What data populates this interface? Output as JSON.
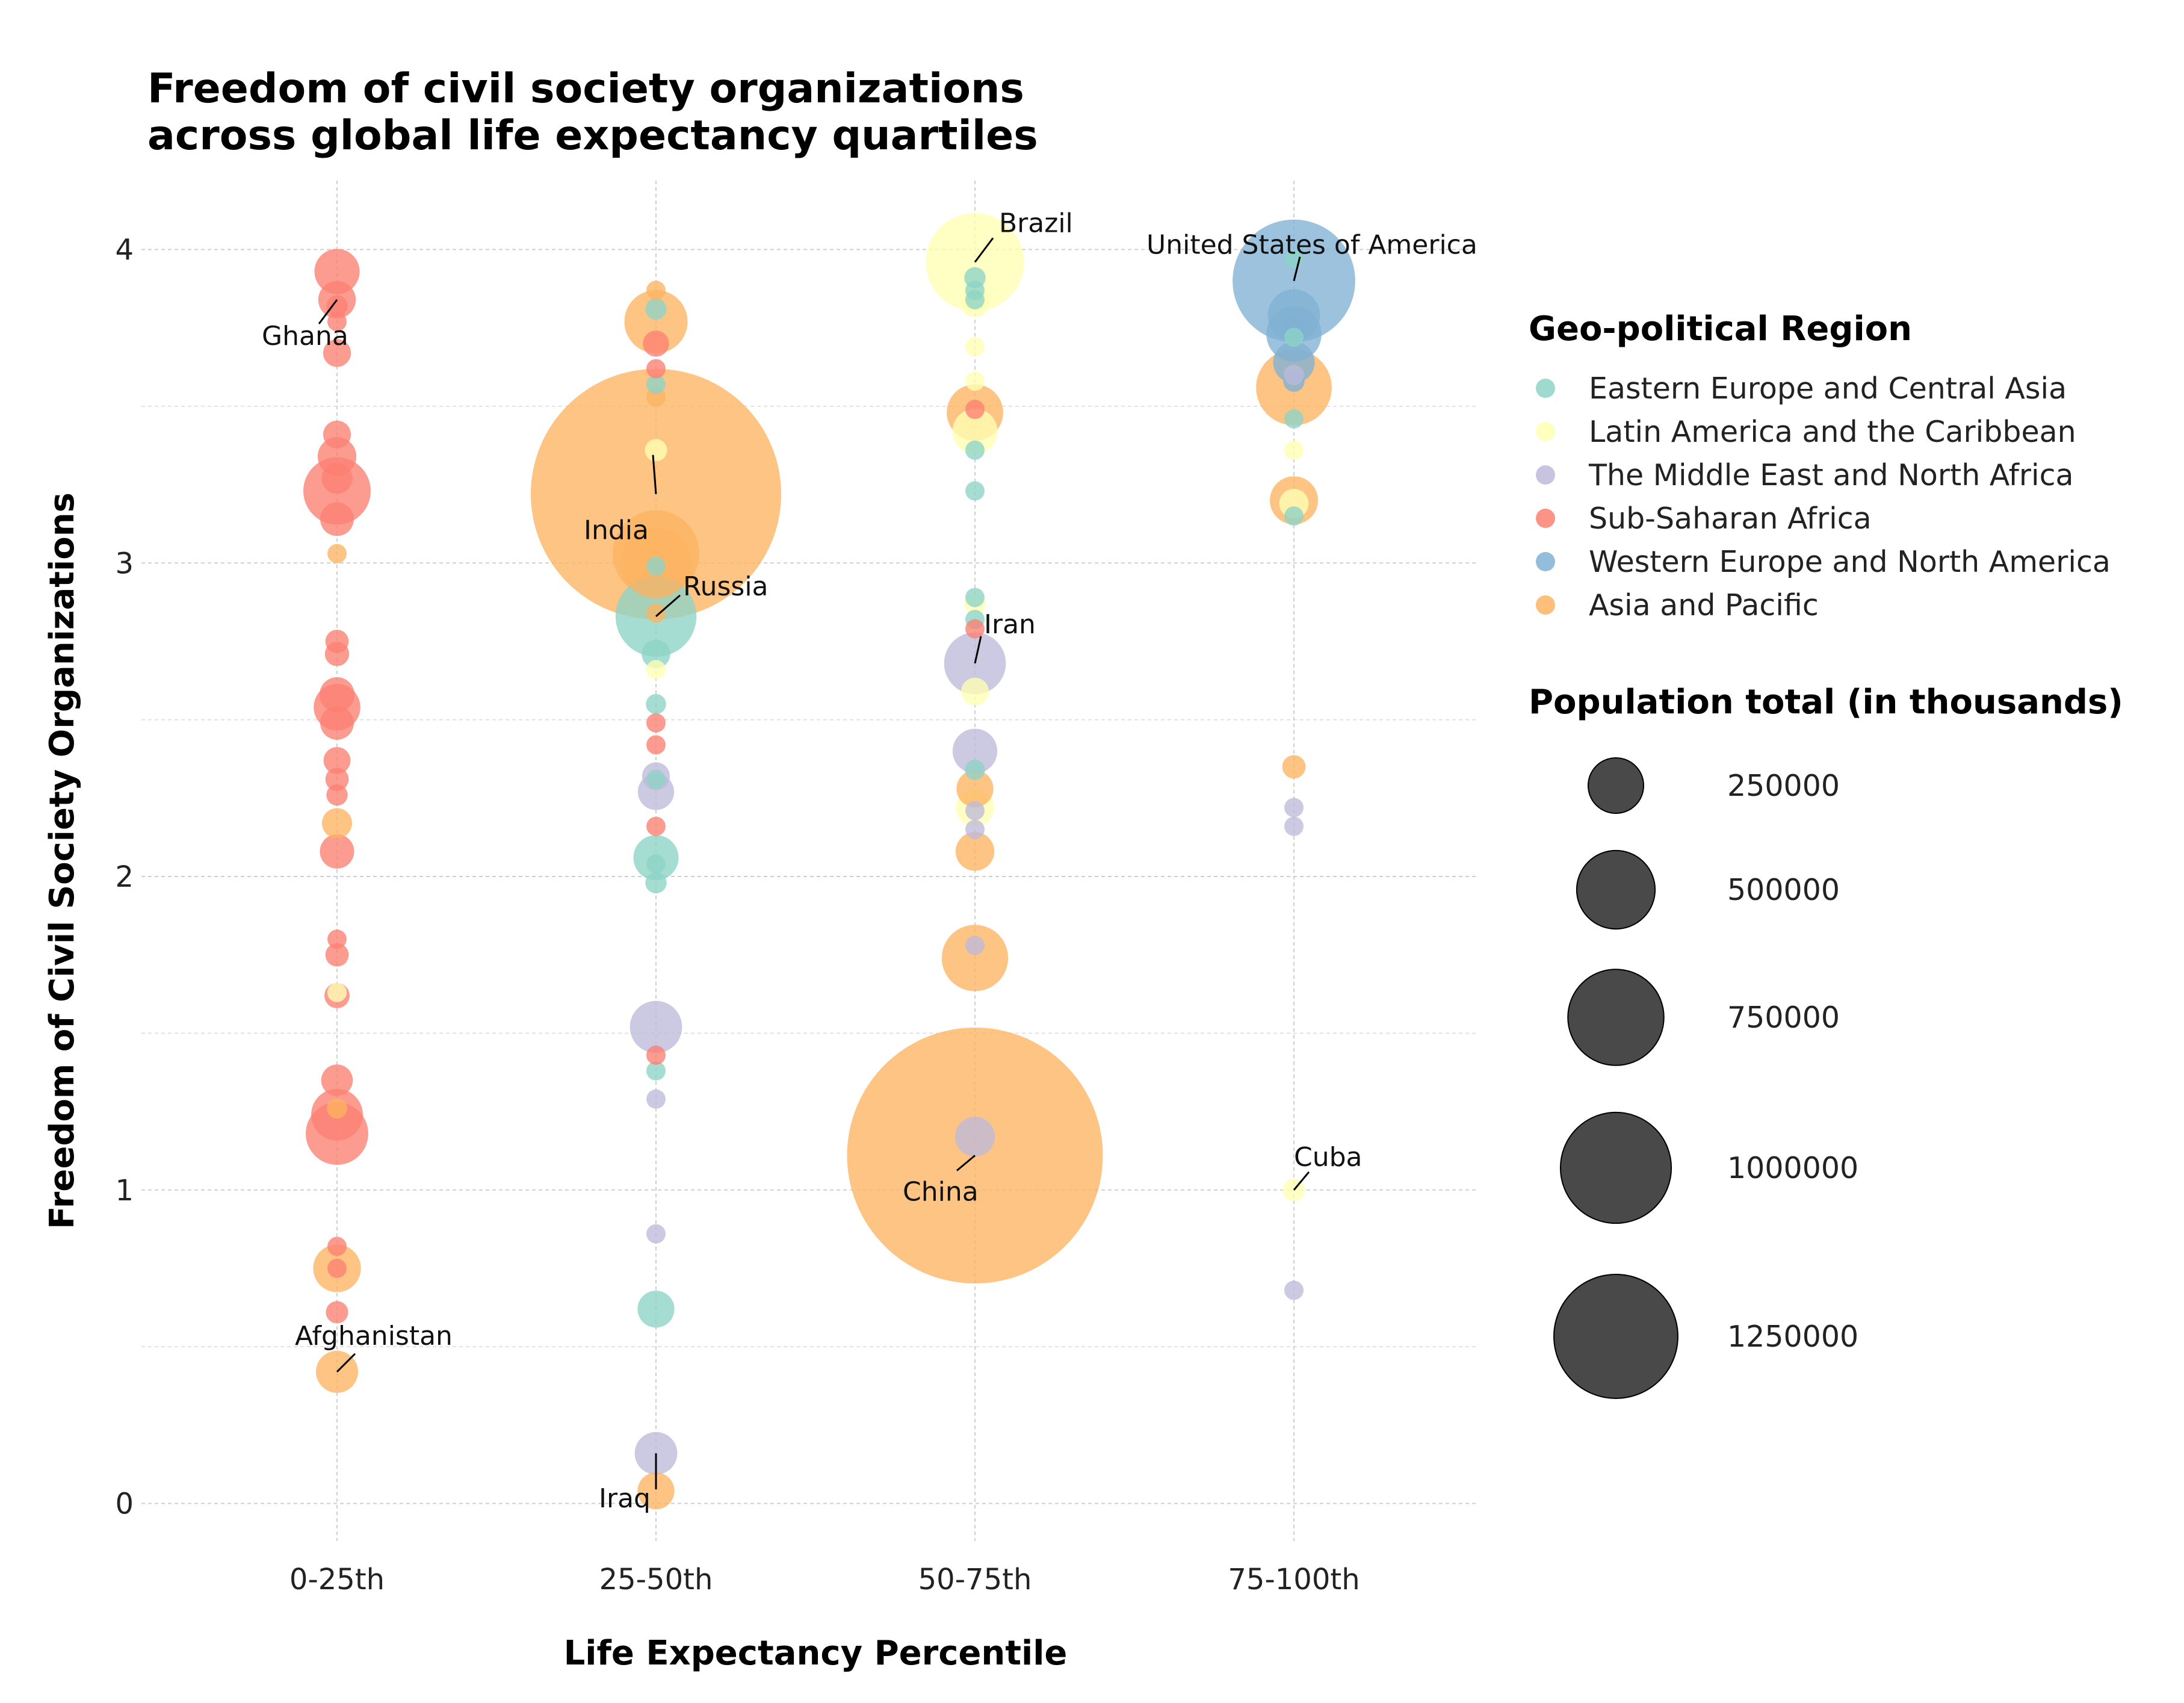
{
  "chart_data": {
    "type": "scatter",
    "title": "Freedom of civil society organizations\nacross global life expectancy quartiles",
    "xlabel": "Life Expectancy Percentile",
    "ylabel": "Freedom of Civil Society Organizations",
    "categories": [
      "0-25th",
      "25-50th",
      "50-75th",
      "75-100th"
    ],
    "y_ticks": [
      "0",
      "1",
      "2",
      "3",
      "4"
    ],
    "ylim": [
      -0.12,
      4.22
    ],
    "grid": "on",
    "legend_position": "right",
    "size_legend": {
      "title": "Population total (in thousands)",
      "values": [
        250000,
        500000,
        750000,
        1000000,
        1250000
      ],
      "labels": [
        "250000",
        "500000",
        "750000",
        "1000000",
        "1250000"
      ]
    },
    "series": [
      {
        "name": "Eastern Europe and Central Asia",
        "color": "#8dd3c7",
        "points": [
          {
            "x": "25-50th",
            "y": 3.81,
            "pop": 10000
          },
          {
            "x": "25-50th",
            "y": 3.57,
            "pop": 4000
          },
          {
            "x": "25-50th",
            "y": 2.99,
            "pop": 3000
          },
          {
            "x": "25-50th",
            "y": 2.83,
            "pop": 144000
          },
          {
            "x": "25-50th",
            "y": 2.71,
            "pop": 18000
          },
          {
            "x": "25-50th",
            "y": 2.55,
            "pop": 9000
          },
          {
            "x": "25-50th",
            "y": 2.31,
            "pop": 7000
          },
          {
            "x": "25-50th",
            "y": 2.06,
            "pop": 45000
          },
          {
            "x": "25-50th",
            "y": 2.04,
            "pop": 8000
          },
          {
            "x": "25-50th",
            "y": 1.98,
            "pop": 10000
          },
          {
            "x": "25-50th",
            "y": 1.38,
            "pop": 6000
          },
          {
            "x": "25-50th",
            "y": 0.62,
            "pop": 30000
          },
          {
            "x": "50-75th",
            "y": 3.91,
            "pop": 10000
          },
          {
            "x": "50-75th",
            "y": 3.87,
            "pop": 7000
          },
          {
            "x": "50-75th",
            "y": 3.84,
            "pop": 4000
          },
          {
            "x": "50-75th",
            "y": 3.36,
            "pop": 5000
          },
          {
            "x": "50-75th",
            "y": 3.23,
            "pop": 7000
          },
          {
            "x": "50-75th",
            "y": 2.89,
            "pop": 3000
          },
          {
            "x": "50-75th",
            "y": 2.82,
            "pop": 3000
          },
          {
            "x": "50-75th",
            "y": 2.34,
            "pop": 9000
          },
          {
            "x": "75-100th",
            "y": 3.97,
            "pop": 2000
          },
          {
            "x": "75-100th",
            "y": 3.72,
            "pop": 4000
          },
          {
            "x": "75-100th",
            "y": 3.46,
            "pop": 6000
          },
          {
            "x": "75-100th",
            "y": 3.15,
            "pop": 3000
          }
        ]
      },
      {
        "name": "Latin America and the Caribbean",
        "color": "#ffffb3",
        "points": [
          {
            "x": "0-25th",
            "y": 1.63,
            "pop": 2000
          },
          {
            "x": "25-50th",
            "y": 3.36,
            "pop": 11000
          },
          {
            "x": "25-50th",
            "y": 2.66,
            "pop": 3000
          },
          {
            "x": "50-75th",
            "y": 3.96,
            "pop": 212000
          },
          {
            "x": "50-75th",
            "y": 3.83,
            "pop": 18000
          },
          {
            "x": "50-75th",
            "y": 3.69,
            "pop": 3000
          },
          {
            "x": "50-75th",
            "y": 3.58,
            "pop": 7000
          },
          {
            "x": "50-75th",
            "y": 3.42,
            "pop": 45000
          },
          {
            "x": "50-75th",
            "y": 2.87,
            "pop": 10000
          },
          {
            "x": "50-75th",
            "y": 2.59,
            "pop": 17000
          },
          {
            "x": "50-75th",
            "y": 2.22,
            "pop": 32000
          },
          {
            "x": "75-100th",
            "y": 3.36,
            "pop": 3000
          },
          {
            "x": "75-100th",
            "y": 3.19,
            "pop": 19000
          },
          {
            "x": "75-100th",
            "y": 1.0,
            "pop": 11000
          }
        ]
      },
      {
        "name": "The Middle East and North Africa",
        "color": "#bebada",
        "points": [
          {
            "x": "25-50th",
            "y": 2.32,
            "pop": 17000
          },
          {
            "x": "25-50th",
            "y": 2.27,
            "pop": 29000
          },
          {
            "x": "25-50th",
            "y": 1.52,
            "pop": 60000
          },
          {
            "x": "25-50th",
            "y": 1.29,
            "pop": 6000
          },
          {
            "x": "25-50th",
            "y": 0.86,
            "pop": 6000
          },
          {
            "x": "25-50th",
            "y": 0.16,
            "pop": 40000
          },
          {
            "x": "50-75th",
            "y": 2.68,
            "pop": 84000
          },
          {
            "x": "50-75th",
            "y": 2.4,
            "pop": 44000
          },
          {
            "x": "50-75th",
            "y": 2.21,
            "pop": 7000
          },
          {
            "x": "50-75th",
            "y": 2.15,
            "pop": 3000
          },
          {
            "x": "50-75th",
            "y": 1.78,
            "pop": 4000
          },
          {
            "x": "50-75th",
            "y": 1.17,
            "pop": 35000
          },
          {
            "x": "75-100th",
            "y": 3.6,
            "pop": 9000
          },
          {
            "x": "75-100th",
            "y": 2.22,
            "pop": 4000
          },
          {
            "x": "75-100th",
            "y": 2.16,
            "pop": 5000
          },
          {
            "x": "75-100th",
            "y": 0.68,
            "pop": 5000
          }
        ]
      },
      {
        "name": "Sub-Saharan Africa",
        "color": "#fb8072",
        "points": [
          {
            "x": "0-25th",
            "y": 3.93,
            "pop": 45000
          },
          {
            "x": "0-25th",
            "y": 3.84,
            "pop": 31000
          },
          {
            "x": "0-25th",
            "y": 3.82,
            "pop": 10000
          },
          {
            "x": "0-25th",
            "y": 3.77,
            "pop": 4000
          },
          {
            "x": "0-25th",
            "y": 3.67,
            "pop": 17000
          },
          {
            "x": "0-25th",
            "y": 3.41,
            "pop": 17000
          },
          {
            "x": "0-25th",
            "y": 3.34,
            "pop": 33000
          },
          {
            "x": "0-25th",
            "y": 3.27,
            "pop": 21000
          },
          {
            "x": "0-25th",
            "y": 3.23,
            "pop": 100000
          },
          {
            "x": "0-25th",
            "y": 3.14,
            "pop": 25000
          },
          {
            "x": "0-25th",
            "y": 2.75,
            "pop": 12000
          },
          {
            "x": "0-25th",
            "y": 2.71,
            "pop": 13000
          },
          {
            "x": "0-25th",
            "y": 2.58,
            "pop": 27000
          },
          {
            "x": "0-25th",
            "y": 2.54,
            "pop": 48000
          },
          {
            "x": "0-25th",
            "y": 2.49,
            "pop": 25000
          },
          {
            "x": "0-25th",
            "y": 2.37,
            "pop": 16000
          },
          {
            "x": "0-25th",
            "y": 2.31,
            "pop": 12000
          },
          {
            "x": "0-25th",
            "y": 2.26,
            "pop": 10000
          },
          {
            "x": "0-25th",
            "y": 2.08,
            "pop": 26000
          },
          {
            "x": "0-25th",
            "y": 1.8,
            "pop": 8000
          },
          {
            "x": "0-25th",
            "y": 1.75,
            "pop": 12000
          },
          {
            "x": "0-25th",
            "y": 1.62,
            "pop": 14000
          },
          {
            "x": "0-25th",
            "y": 1.35,
            "pop": 22000
          },
          {
            "x": "0-25th",
            "y": 1.24,
            "pop": 59000
          },
          {
            "x": "0-25th",
            "y": 1.18,
            "pop": 86000
          },
          {
            "x": "0-25th",
            "y": 0.82,
            "pop": 5000
          },
          {
            "x": "0-25th",
            "y": 0.75,
            "pop": 8000
          },
          {
            "x": "0-25th",
            "y": 0.61,
            "pop": 11000
          },
          {
            "x": "25-50th",
            "y": 3.7,
            "pop": 15000
          },
          {
            "x": "25-50th",
            "y": 3.62,
            "pop": 4000
          },
          {
            "x": "25-50th",
            "y": 2.49,
            "pop": 6000
          },
          {
            "x": "25-50th",
            "y": 2.42,
            "pop": 4000
          },
          {
            "x": "25-50th",
            "y": 2.16,
            "pop": 3000
          },
          {
            "x": "25-50th",
            "y": 1.43,
            "pop": 4000
          },
          {
            "x": "50-75th",
            "y": 3.49,
            "pop": 4000
          },
          {
            "x": "50-75th",
            "y": 2.79,
            "pop": 2000
          }
        ]
      },
      {
        "name": "Western Europe and North America",
        "color": "#80b1d3",
        "points": [
          {
            "x": "75-100th",
            "y": 3.9,
            "pop": 331000
          },
          {
            "x": "75-100th",
            "y": 3.79,
            "pop": 60000
          },
          {
            "x": "75-100th",
            "y": 3.73,
            "pop": 67000
          },
          {
            "x": "75-100th",
            "y": 3.64,
            "pop": 38000
          },
          {
            "x": "75-100th",
            "y": 3.58,
            "pop": 10000
          },
          {
            "x": "75-100th",
            "y": 3.75,
            "pop": 11000
          }
        ]
      },
      {
        "name": "Asia and Pacific",
        "color": "#fdb462",
        "points": [
          {
            "x": "0-25th",
            "y": 3.03,
            "pop": 3000
          },
          {
            "x": "0-25th",
            "y": 2.17,
            "pop": 20000
          },
          {
            "x": "0-25th",
            "y": 1.26,
            "pop": 9000
          },
          {
            "x": "0-25th",
            "y": 0.75,
            "pop": 50000
          },
          {
            "x": "0-25th",
            "y": 0.42,
            "pop": 39000
          },
          {
            "x": "25-50th",
            "y": 3.87,
            "pop": 3000
          },
          {
            "x": "25-50th",
            "y": 3.77,
            "pop": 88000
          },
          {
            "x": "25-50th",
            "y": 3.53,
            "pop": 8000
          },
          {
            "x": "25-50th",
            "y": 3.22,
            "pop": 1380000
          },
          {
            "x": "25-50th",
            "y": 3.03,
            "pop": 165000
          },
          {
            "x": "25-50th",
            "y": 3.0,
            "pop": 109000
          },
          {
            "x": "25-50th",
            "y": 2.84,
            "pop": 3000
          },
          {
            "x": "25-50th",
            "y": 0.04,
            "pop": 30000
          },
          {
            "x": "50-75th",
            "y": 3.48,
            "pop": 70000
          },
          {
            "x": "50-75th",
            "y": 2.28,
            "pop": 30000
          },
          {
            "x": "50-75th",
            "y": 2.08,
            "pop": 33000
          },
          {
            "x": "50-75th",
            "y": 1.74,
            "pop": 97000
          },
          {
            "x": "50-75th",
            "y": 1.11,
            "pop": 1440000
          },
          {
            "x": "75-100th",
            "y": 3.56,
            "pop": 126000
          },
          {
            "x": "75-100th",
            "y": 3.2,
            "pop": 51000
          },
          {
            "x": "75-100th",
            "y": 2.35,
            "pop": 12000
          }
        ]
      }
    ],
    "annotations": [
      {
        "label": "Ghana",
        "x": "0-25th",
        "y": 3.84
      },
      {
        "label": "Afghanistan",
        "x": "0-25th",
        "y": 0.42
      },
      {
        "label": "India",
        "x": "25-50th",
        "y": 3.22
      },
      {
        "label": "Russia",
        "x": "25-50th",
        "y": 2.83
      },
      {
        "label": "Iraq",
        "x": "25-50th",
        "y": 0.16
      },
      {
        "label": "Brazil",
        "x": "50-75th",
        "y": 3.96
      },
      {
        "label": "Iran",
        "x": "50-75th",
        "y": 2.68
      },
      {
        "label": "China",
        "x": "50-75th",
        "y": 1.11
      },
      {
        "label": "United States of America",
        "x": "75-100th",
        "y": 3.9
      },
      {
        "label": "Cuba",
        "x": "75-100th",
        "y": 1.0
      }
    ]
  },
  "legend": {
    "color_title": "Geo-political Region",
    "size_title": "Population total (in thousands)"
  }
}
